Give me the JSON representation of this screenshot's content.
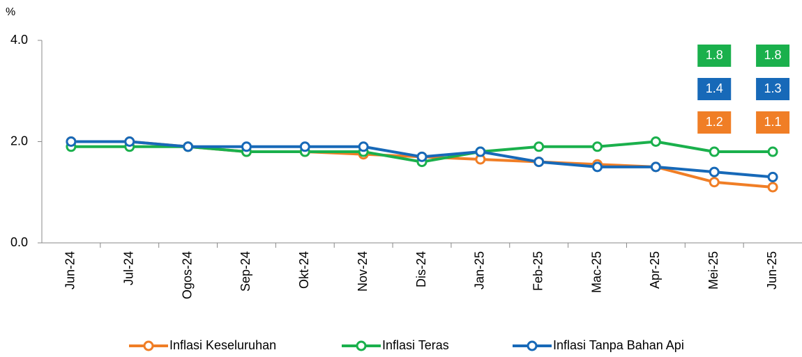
{
  "chart_data": {
    "type": "line",
    "y_label": "%",
    "categories": [
      "Jun-24",
      "Jul-24",
      "Ogos-24",
      "Sep-24",
      "Okt-24",
      "Nov-24",
      "Dis-24",
      "Jan-25",
      "Feb-25",
      "Mac-25",
      "Apr-25",
      "Mei-25",
      "Jun-25"
    ],
    "series": [
      {
        "name": "Inflasi Keseluruhan",
        "color": "#f07e26",
        "values": [
          2.0,
          2.0,
          1.9,
          1.8,
          1.8,
          1.75,
          1.7,
          1.65,
          1.6,
          1.55,
          1.5,
          1.2,
          1.1
        ],
        "value_labels": [
          null,
          null,
          null,
          null,
          null,
          null,
          null,
          null,
          null,
          null,
          null,
          "1.2",
          "1.1"
        ]
      },
      {
        "name": "Inflasi Teras",
        "color": "#1ab04c",
        "values": [
          1.9,
          1.9,
          1.9,
          1.8,
          1.8,
          1.8,
          1.6,
          1.8,
          1.9,
          1.9,
          2.0,
          1.8,
          1.8
        ],
        "value_labels": [
          null,
          null,
          null,
          null,
          null,
          null,
          null,
          null,
          null,
          null,
          null,
          "1.8",
          "1.8"
        ]
      },
      {
        "name": "Inflasi Tanpa Bahan Api",
        "color": "#1769b8",
        "values": [
          2.0,
          2.0,
          1.9,
          1.9,
          1.9,
          1.9,
          1.7,
          1.8,
          1.6,
          1.5,
          1.5,
          1.4,
          1.3
        ],
        "value_labels": [
          null,
          null,
          null,
          null,
          null,
          null,
          null,
          null,
          null,
          null,
          null,
          "1.4",
          "1.3"
        ]
      }
    ],
    "ylim": [
      0,
      4
    ],
    "yticks": [
      {
        "value": 0,
        "label": "0.0"
      },
      {
        "value": 2,
        "label": "2.0"
      },
      {
        "value": 4,
        "label": "4.0"
      }
    ],
    "grid": false,
    "legend": "bottom"
  }
}
